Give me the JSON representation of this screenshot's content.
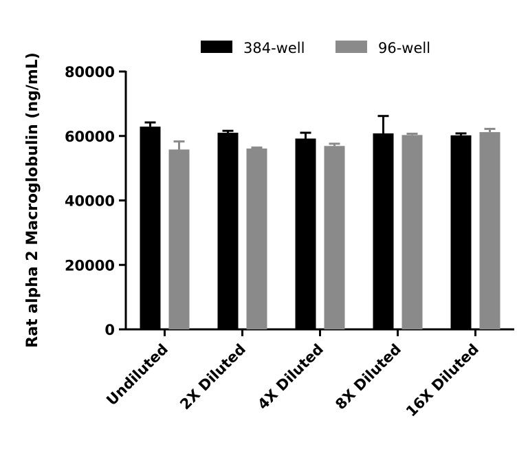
{
  "chart_data": {
    "type": "bar",
    "categories": [
      "Undiluted",
      "2X Diluted",
      "4X Diluted",
      "8X Diluted",
      "16X Diluted"
    ],
    "series": [
      {
        "name": "384-well",
        "color": "#000000",
        "values": [
          62900,
          61000,
          59200,
          60800,
          60200
        ],
        "errors": [
          1300,
          600,
          1800,
          5400,
          600
        ]
      },
      {
        "name": "96-well",
        "color": "#8a8a8a",
        "values": [
          55800,
          56100,
          56900,
          60300,
          61200
        ],
        "errors": [
          2500,
          300,
          700,
          400,
          1000
        ]
      }
    ],
    "title": "",
    "xlabel": "",
    "ylabel": "Rat alpha 2 Macroglobulin (ng/mL)",
    "ylim": [
      0,
      80000
    ],
    "yticks": [
      0,
      20000,
      40000,
      60000,
      80000
    ],
    "ytick_labels": [
      "0",
      "20000",
      "40000",
      "60000",
      "80000"
    ],
    "grid": false,
    "legend_position": "top",
    "error_bars": "upper"
  }
}
